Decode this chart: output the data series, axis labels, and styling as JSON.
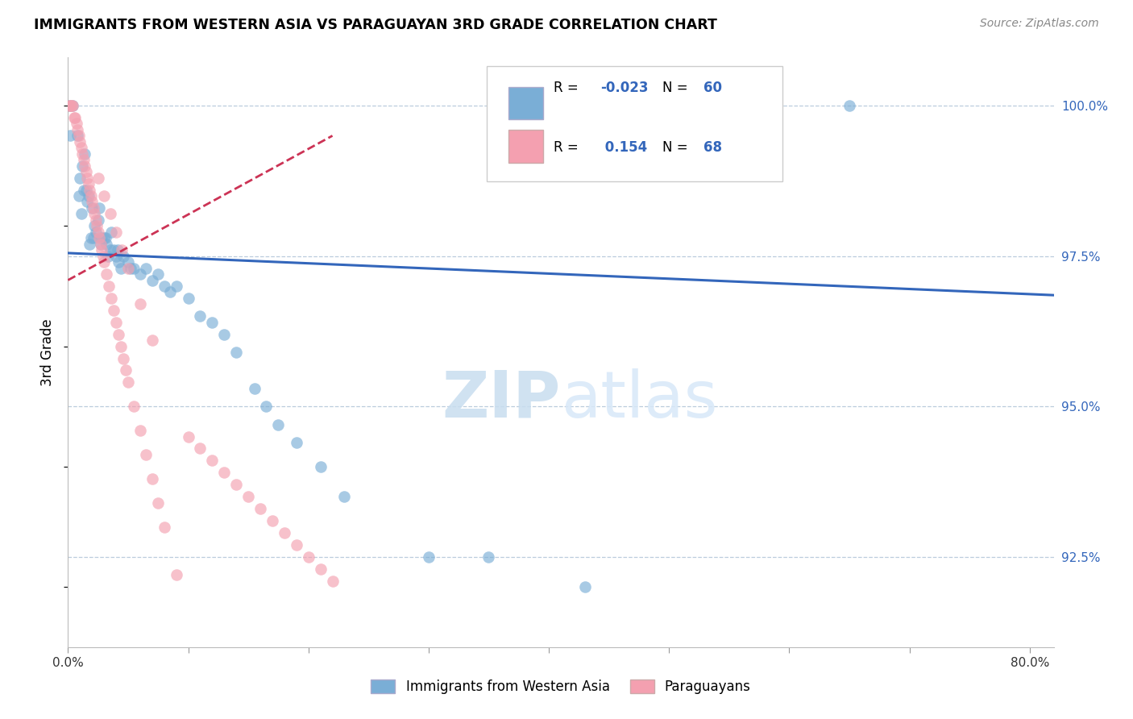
{
  "title": "IMMIGRANTS FROM WESTERN ASIA VS PARAGUAYAN 3RD GRADE CORRELATION CHART",
  "source": "Source: ZipAtlas.com",
  "ylabel": "3rd Grade",
  "legend_blue_r": "-0.023",
  "legend_blue_n": "60",
  "legend_pink_r": "0.154",
  "legend_pink_n": "68",
  "legend_label_blue": "Immigrants from Western Asia",
  "legend_label_pink": "Paraguayans",
  "blue_color": "#7AAED6",
  "pink_color": "#F4A0B0",
  "trend_blue_color": "#3366BB",
  "trend_pink_color": "#CC3355",
  "blue_scatter_x": [
    0.001,
    0.002,
    0.004,
    0.008,
    0.009,
    0.01,
    0.011,
    0.012,
    0.013,
    0.014,
    0.015,
    0.016,
    0.017,
    0.018,
    0.019,
    0.02,
    0.021,
    0.022,
    0.023,
    0.025,
    0.026,
    0.027,
    0.028,
    0.03,
    0.031,
    0.032,
    0.033,
    0.035,
    0.036,
    0.038,
    0.04,
    0.041,
    0.042,
    0.044,
    0.046,
    0.05,
    0.052,
    0.055,
    0.06,
    0.065,
    0.07,
    0.075,
    0.08,
    0.085,
    0.09,
    0.1,
    0.11,
    0.12,
    0.13,
    0.14,
    0.155,
    0.165,
    0.175,
    0.19,
    0.21,
    0.23,
    0.3,
    0.35,
    0.43,
    0.65
  ],
  "blue_scatter_y": [
    100.0,
    99.5,
    100.0,
    99.5,
    98.5,
    98.8,
    98.2,
    99.0,
    98.6,
    99.2,
    98.6,
    98.4,
    98.5,
    97.7,
    97.8,
    98.3,
    97.8,
    98.0,
    97.9,
    98.1,
    98.3,
    97.7,
    97.8,
    97.8,
    97.8,
    97.7,
    97.5,
    97.6,
    97.9,
    97.6,
    97.5,
    97.6,
    97.4,
    97.3,
    97.5,
    97.4,
    97.3,
    97.3,
    97.2,
    97.3,
    97.1,
    97.2,
    97.0,
    96.9,
    97.0,
    96.8,
    96.5,
    96.4,
    96.2,
    95.9,
    95.3,
    95.0,
    94.7,
    94.4,
    94.0,
    93.5,
    92.5,
    92.5,
    92.0,
    100.0
  ],
  "pink_scatter_x": [
    0.001,
    0.002,
    0.003,
    0.004,
    0.005,
    0.006,
    0.007,
    0.008,
    0.009,
    0.01,
    0.011,
    0.012,
    0.013,
    0.014,
    0.015,
    0.016,
    0.017,
    0.018,
    0.019,
    0.02,
    0.021,
    0.022,
    0.023,
    0.024,
    0.025,
    0.026,
    0.027,
    0.028,
    0.029,
    0.03,
    0.032,
    0.034,
    0.036,
    0.038,
    0.04,
    0.042,
    0.044,
    0.046,
    0.048,
    0.05,
    0.055,
    0.06,
    0.065,
    0.07,
    0.075,
    0.08,
    0.09,
    0.1,
    0.11,
    0.12,
    0.13,
    0.14,
    0.15,
    0.16,
    0.17,
    0.18,
    0.19,
    0.2,
    0.21,
    0.22,
    0.025,
    0.03,
    0.035,
    0.04,
    0.045,
    0.05,
    0.06,
    0.07
  ],
  "pink_scatter_y": [
    100.0,
    100.0,
    100.0,
    100.0,
    99.8,
    99.8,
    99.7,
    99.6,
    99.5,
    99.4,
    99.3,
    99.2,
    99.1,
    99.0,
    98.9,
    98.8,
    98.7,
    98.6,
    98.5,
    98.4,
    98.3,
    98.2,
    98.1,
    98.0,
    97.9,
    97.8,
    97.7,
    97.6,
    97.5,
    97.4,
    97.2,
    97.0,
    96.8,
    96.6,
    96.4,
    96.2,
    96.0,
    95.8,
    95.6,
    95.4,
    95.0,
    94.6,
    94.2,
    93.8,
    93.4,
    93.0,
    92.2,
    94.5,
    94.3,
    94.1,
    93.9,
    93.7,
    93.5,
    93.3,
    93.1,
    92.9,
    92.7,
    92.5,
    92.3,
    92.1,
    98.8,
    98.5,
    98.2,
    97.9,
    97.6,
    97.3,
    96.7,
    96.1
  ],
  "xlim": [
    0.0,
    0.82
  ],
  "ylim": [
    91.0,
    100.8
  ],
  "yticks": [
    92.5,
    95.0,
    97.5,
    100.0
  ],
  "xtick_positions": [
    0.0,
    0.1,
    0.2,
    0.3,
    0.4,
    0.5,
    0.6,
    0.7,
    0.8
  ],
  "blue_trend_x": [
    0.0,
    0.82
  ],
  "blue_trend_y": [
    97.55,
    96.85
  ],
  "pink_trend_x": [
    0.0,
    0.22
  ],
  "pink_trend_y": [
    97.1,
    99.5
  ]
}
